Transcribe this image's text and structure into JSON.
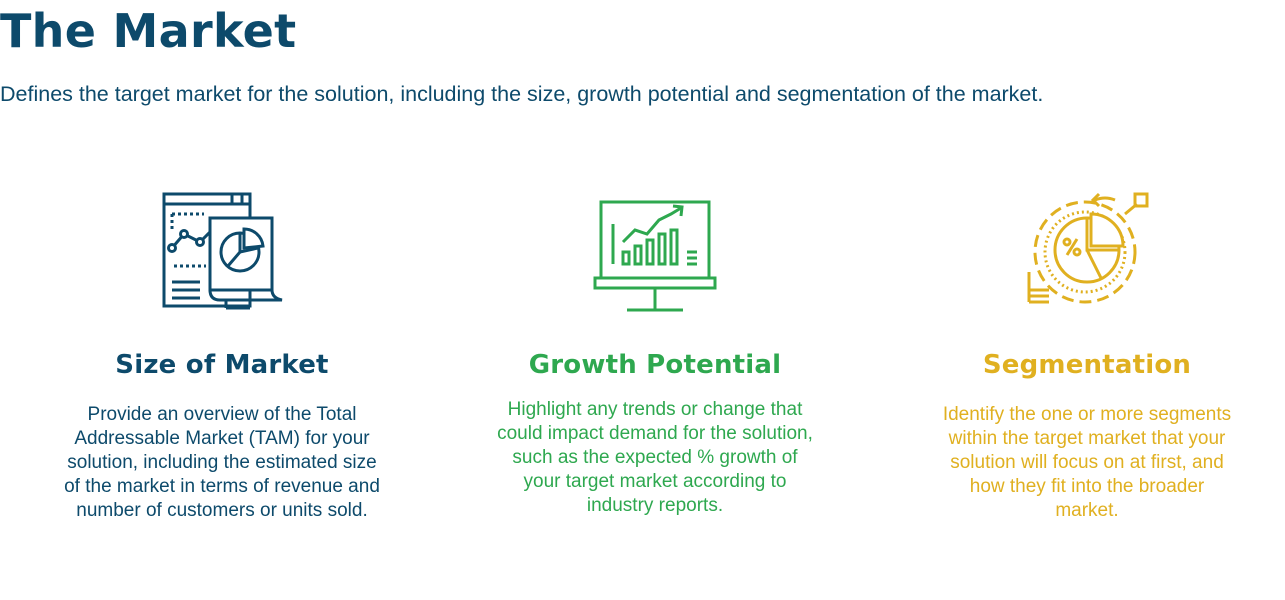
{
  "header": {
    "title": "The Market",
    "subtitle": "Defines the target market for the solution, including the size, growth potential and segmentation of the market."
  },
  "columns": [
    {
      "icon": "market-analysis-report-icon",
      "color": "#0d4a6b",
      "heading": "Size of Market",
      "text": "Provide an overview of the Total Addressable Market (TAM) for your solution, including the estimated size of the market in terms of revenue and number of customers or units sold."
    },
    {
      "icon": "growth-chart-monitor-icon",
      "color": "#2ea84f",
      "heading": "Growth Potential",
      "text": "Highlight any trends or change that could impact demand for the solution, such as the expected % growth of your target market according to industry reports."
    },
    {
      "icon": "segmentation-pie-target-icon",
      "color": "#e0b020",
      "heading": "Segmentation",
      "text": "Identify the one or more segments within the target market that your solution will focus on at first, and how they fit into the broader market."
    }
  ]
}
